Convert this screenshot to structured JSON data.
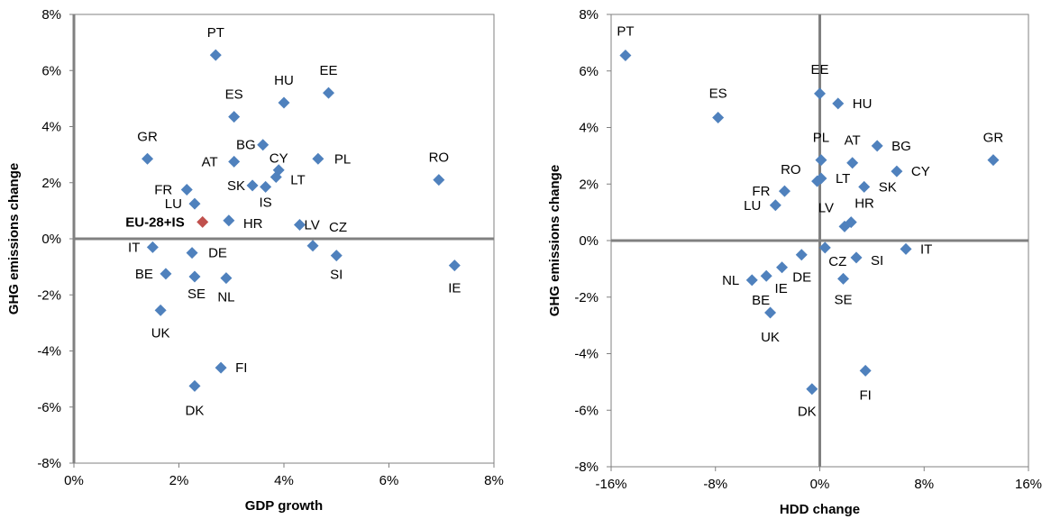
{
  "chart_data": [
    {
      "type": "scatter",
      "xlabel": "GDP growth",
      "ylabel": "GHG emissions change",
      "xlim": [
        0,
        8
      ],
      "ylim": [
        -8,
        8
      ],
      "xticks": [
        "0%",
        "2%",
        "4%",
        "6%",
        "8%"
      ],
      "yticks": [
        "8%",
        "6%",
        "4%",
        "2%",
        "0%",
        "-2%",
        "-4%",
        "-6%",
        "-8%"
      ],
      "grid": false,
      "colors": {
        "point": "#4f81bd",
        "highlight": "#c0504d",
        "axis": "#808080"
      },
      "points": [
        {
          "label": "PT",
          "x": 2.7,
          "y": 6.55
        },
        {
          "label": "EE",
          "x": 4.85,
          "y": 5.2
        },
        {
          "label": "HU",
          "x": 4.0,
          "y": 4.85
        },
        {
          "label": "ES",
          "x": 3.05,
          "y": 4.35
        },
        {
          "label": "BG",
          "x": 3.6,
          "y": 3.35
        },
        {
          "label": "GR",
          "x": 1.4,
          "y": 2.85
        },
        {
          "label": "AT",
          "x": 3.05,
          "y": 2.75
        },
        {
          "label": "CY",
          "x": 3.9,
          "y": 2.45
        },
        {
          "label": "PL",
          "x": 4.65,
          "y": 2.85
        },
        {
          "label": "LT",
          "x": 3.85,
          "y": 2.2
        },
        {
          "label": "RO",
          "x": 6.95,
          "y": 2.1
        },
        {
          "label": "SK",
          "x": 3.4,
          "y": 1.9
        },
        {
          "label": "IS",
          "x": 3.65,
          "y": 1.85
        },
        {
          "label": "FR",
          "x": 2.15,
          "y": 1.75
        },
        {
          "label": "LU",
          "x": 2.3,
          "y": 1.25
        },
        {
          "label": "EU-28+IS",
          "x": 2.45,
          "y": 0.6,
          "highlight": true
        },
        {
          "label": "HR",
          "x": 2.95,
          "y": 0.65
        },
        {
          "label": "LV",
          "x": 4.3,
          "y": 0.5
        },
        {
          "label": "CZ",
          "x": 4.55,
          "y": -0.25
        },
        {
          "label": "IT",
          "x": 1.5,
          "y": -0.3
        },
        {
          "label": "DE",
          "x": 2.25,
          "y": -0.5
        },
        {
          "label": "SI",
          "x": 5.0,
          "y": -0.6
        },
        {
          "label": "IE",
          "x": 7.25,
          "y": -0.95
        },
        {
          "label": "BE",
          "x": 1.75,
          "y": -1.25
        },
        {
          "label": "SE",
          "x": 2.3,
          "y": -1.35
        },
        {
          "label": "NL",
          "x": 2.9,
          "y": -1.4
        },
        {
          "label": "UK",
          "x": 1.65,
          "y": -2.55
        },
        {
          "label": "FI",
          "x": 2.8,
          "y": -4.6
        },
        {
          "label": "DK",
          "x": 2.3,
          "y": -5.25
        }
      ]
    },
    {
      "type": "scatter",
      "xlabel": "HDD change",
      "ylabel": "GHG emissions change",
      "xlim": [
        -16,
        16
      ],
      "ylim": [
        -8,
        8
      ],
      "xticks": [
        "-16%",
        "-8%",
        "0%",
        "8%",
        "16%"
      ],
      "yticks": [
        "8%",
        "6%",
        "4%",
        "2%",
        "0%",
        "-2%",
        "-4%",
        "-6%",
        "-8%"
      ],
      "grid": false,
      "colors": {
        "point": "#4f81bd",
        "axis": "#808080"
      },
      "points": [
        {
          "label": "PT",
          "x": -14.9,
          "y": 6.55
        },
        {
          "label": "ES",
          "x": -7.8,
          "y": 4.35
        },
        {
          "label": "EE",
          "x": 0.0,
          "y": 5.2
        },
        {
          "label": "HU",
          "x": 1.4,
          "y": 4.85
        },
        {
          "label": "PL",
          "x": 0.1,
          "y": 2.85
        },
        {
          "label": "AT",
          "x": 2.5,
          "y": 2.75
        },
        {
          "label": "BG",
          "x": 4.4,
          "y": 3.35
        },
        {
          "label": "GR",
          "x": 13.3,
          "y": 2.85
        },
        {
          "label": "CY",
          "x": 5.9,
          "y": 2.45
        },
        {
          "label": "RO",
          "x": -0.2,
          "y": 2.1
        },
        {
          "label": "LT",
          "x": 0.1,
          "y": 2.2
        },
        {
          "label": "SK",
          "x": 3.4,
          "y": 1.9
        },
        {
          "label": "FR",
          "x": -2.7,
          "y": 1.75
        },
        {
          "label": "LU",
          "x": -3.4,
          "y": 1.25
        },
        {
          "label": "LV",
          "x": 1.9,
          "y": 0.5
        },
        {
          "label": "HR",
          "x": 2.4,
          "y": 0.65
        },
        {
          "label": "CZ",
          "x": 0.4,
          "y": -0.25
        },
        {
          "label": "IT",
          "x": 6.6,
          "y": -0.3
        },
        {
          "label": "DE",
          "x": -1.4,
          "y": -0.5
        },
        {
          "label": "SI",
          "x": 2.8,
          "y": -0.6
        },
        {
          "label": "IE",
          "x": -2.9,
          "y": -0.95
        },
        {
          "label": "BE",
          "x": -4.1,
          "y": -1.25
        },
        {
          "label": "NL",
          "x": -5.2,
          "y": -1.4
        },
        {
          "label": "SE",
          "x": 1.8,
          "y": -1.35
        },
        {
          "label": "UK",
          "x": -3.8,
          "y": -2.55
        },
        {
          "label": "DK",
          "x": -0.6,
          "y": -5.25
        },
        {
          "label": "FI",
          "x": 3.5,
          "y": -4.6
        }
      ]
    }
  ]
}
